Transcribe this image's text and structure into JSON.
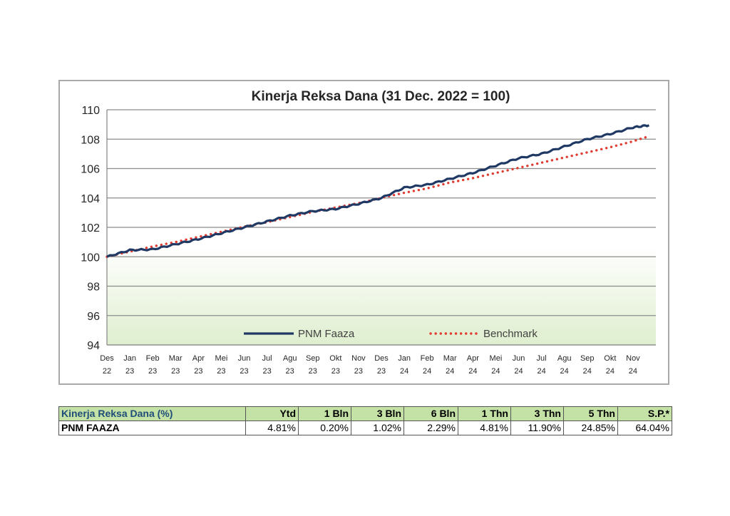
{
  "chart_data": {
    "type": "line",
    "title": "Kinerja Reksa Dana (31 Dec. 2022 = 100)",
    "ylim": [
      94,
      110
    ],
    "yticks": [
      "94",
      "96",
      "98",
      "100",
      "102",
      "104",
      "106",
      "108",
      "110"
    ],
    "xticks": [
      [
        "Des",
        "22"
      ],
      [
        "Jan",
        "23"
      ],
      [
        "Feb",
        "23"
      ],
      [
        "Mar",
        "23"
      ],
      [
        "Apr",
        "23"
      ],
      [
        "Mei",
        "23"
      ],
      [
        "Jun",
        "23"
      ],
      [
        "Jul",
        "23"
      ],
      [
        "Agu",
        "23"
      ],
      [
        "Sep",
        "23"
      ],
      [
        "Okt",
        "23"
      ],
      [
        "Nov",
        "23"
      ],
      [
        "Des",
        "23"
      ],
      [
        "Jan",
        "24"
      ],
      [
        "Feb",
        "24"
      ],
      [
        "Mar",
        "24"
      ],
      [
        "Apr",
        "24"
      ],
      [
        "Mei",
        "24"
      ],
      [
        "Jun",
        "24"
      ],
      [
        "Jul",
        "24"
      ],
      [
        "Agu",
        "24"
      ],
      [
        "Sep",
        "24"
      ],
      [
        "Okt",
        "24"
      ],
      [
        "Nov",
        "24"
      ]
    ],
    "grid": true,
    "legend_position": "bottom-center",
    "series": [
      {
        "name": "PNM Faaza",
        "color": "#1f3864",
        "style": "solid",
        "values": [
          100.0,
          100.45,
          100.5,
          100.85,
          101.2,
          101.6,
          102.0,
          102.4,
          102.8,
          103.1,
          103.25,
          103.6,
          104.0,
          104.7,
          104.9,
          105.3,
          105.7,
          106.2,
          106.7,
          107.0,
          107.5,
          108.0,
          108.35,
          108.8,
          108.95
        ],
        "x_index": [
          0,
          1,
          2,
          3,
          4,
          5,
          6,
          7,
          8,
          9,
          10,
          11,
          12,
          13,
          14,
          15,
          16,
          17,
          18,
          19,
          20,
          21,
          22,
          23,
          23.7
        ]
      },
      {
        "name": "Benchmark",
        "color": "#e03c31",
        "style": "dotted",
        "values": [
          100.0,
          100.35,
          100.7,
          101.0,
          101.35,
          101.7,
          102.05,
          102.35,
          102.7,
          103.05,
          103.35,
          103.65,
          104.0,
          104.35,
          104.65,
          105.05,
          105.35,
          105.7,
          106.05,
          106.4,
          106.75,
          107.1,
          107.45,
          107.85,
          108.2
        ],
        "x_index": [
          0,
          1,
          2,
          3,
          4,
          5,
          6,
          7,
          8,
          9,
          10,
          11,
          12,
          13,
          14,
          15,
          16,
          17,
          18,
          19,
          20,
          21,
          22,
          23,
          23.7
        ]
      }
    ]
  },
  "table": {
    "header": [
      "Kinerja Reksa Dana (%)",
      "Ytd",
      "1 Bln",
      "3 Bln",
      "6 Bln",
      "1 Thn",
      "3 Thn",
      "5 Thn",
      "S.P.*"
    ],
    "row": [
      "PNM FAAZA",
      "4.81%",
      "0.20%",
      "1.02%",
      "2.29%",
      "4.81%",
      "11.90%",
      "24.85%",
      "64.04%"
    ]
  }
}
